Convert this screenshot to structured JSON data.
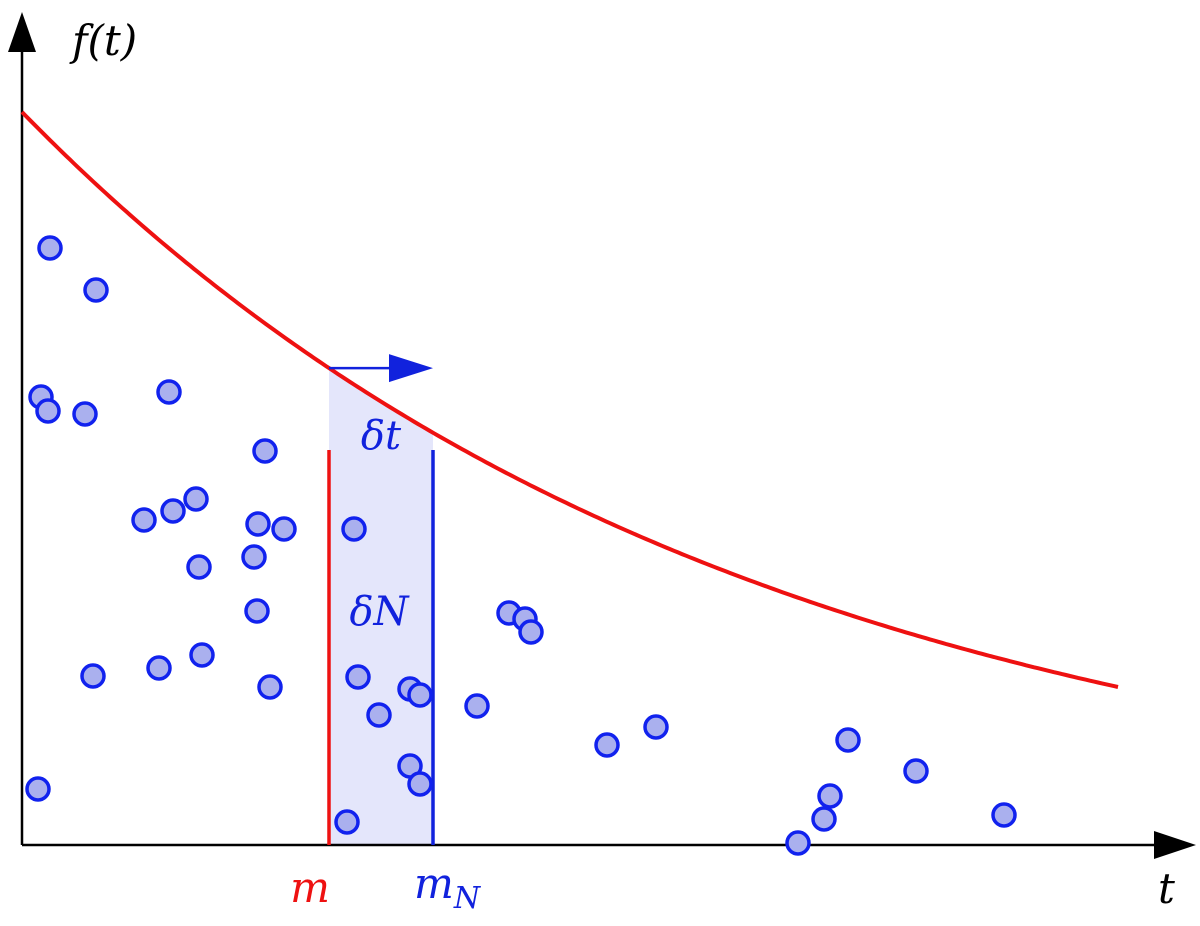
{
  "labels": {
    "y_axis": "f(t)",
    "x_axis": "t",
    "marker_m": "m",
    "marker_mn_base": "m",
    "marker_mn_sub": "N",
    "delta_t": "δt",
    "delta_n": "δN"
  },
  "colors": {
    "curve": "#ee1111",
    "marker_m": "#ee1111",
    "marker_mn": "#1122dd",
    "point_fill": "#aab0ee",
    "point_stroke": "#1122ee",
    "band_fill": "#e4e6fb",
    "axis": "#000000"
  },
  "curve": {
    "f0": 733,
    "decay": 0.0014
  },
  "markers": {
    "m": 307,
    "mN": 411
  },
  "points": [
    [
      28,
      597
    ],
    [
      74,
      555
    ],
    [
      19,
      448
    ],
    [
      26,
      434
    ],
    [
      63,
      431
    ],
    [
      147,
      453
    ],
    [
      243,
      394
    ],
    [
      122,
      325
    ],
    [
      151,
      334
    ],
    [
      174,
      346
    ],
    [
      236,
      321
    ],
    [
      262,
      316
    ],
    [
      232,
      288
    ],
    [
      177,
      278
    ],
    [
      235,
      234
    ],
    [
      332,
      316
    ],
    [
      71,
      169
    ],
    [
      137,
      177
    ],
    [
      180,
      190
    ],
    [
      248,
      158
    ],
    [
      16,
      56
    ],
    [
      336,
      168
    ],
    [
      357,
      130
    ],
    [
      388,
      156
    ],
    [
      398,
      150
    ],
    [
      388,
      79
    ],
    [
      398,
      61
    ],
    [
      325,
      23
    ],
    [
      455,
      139
    ],
    [
      487,
      232
    ],
    [
      503,
      226
    ],
    [
      509,
      213
    ],
    [
      585,
      100
    ],
    [
      634,
      118
    ],
    [
      776,
      2
    ],
    [
      802,
      26
    ],
    [
      808,
      49
    ],
    [
      826,
      105
    ],
    [
      894,
      74
    ],
    [
      982,
      30
    ]
  ]
}
